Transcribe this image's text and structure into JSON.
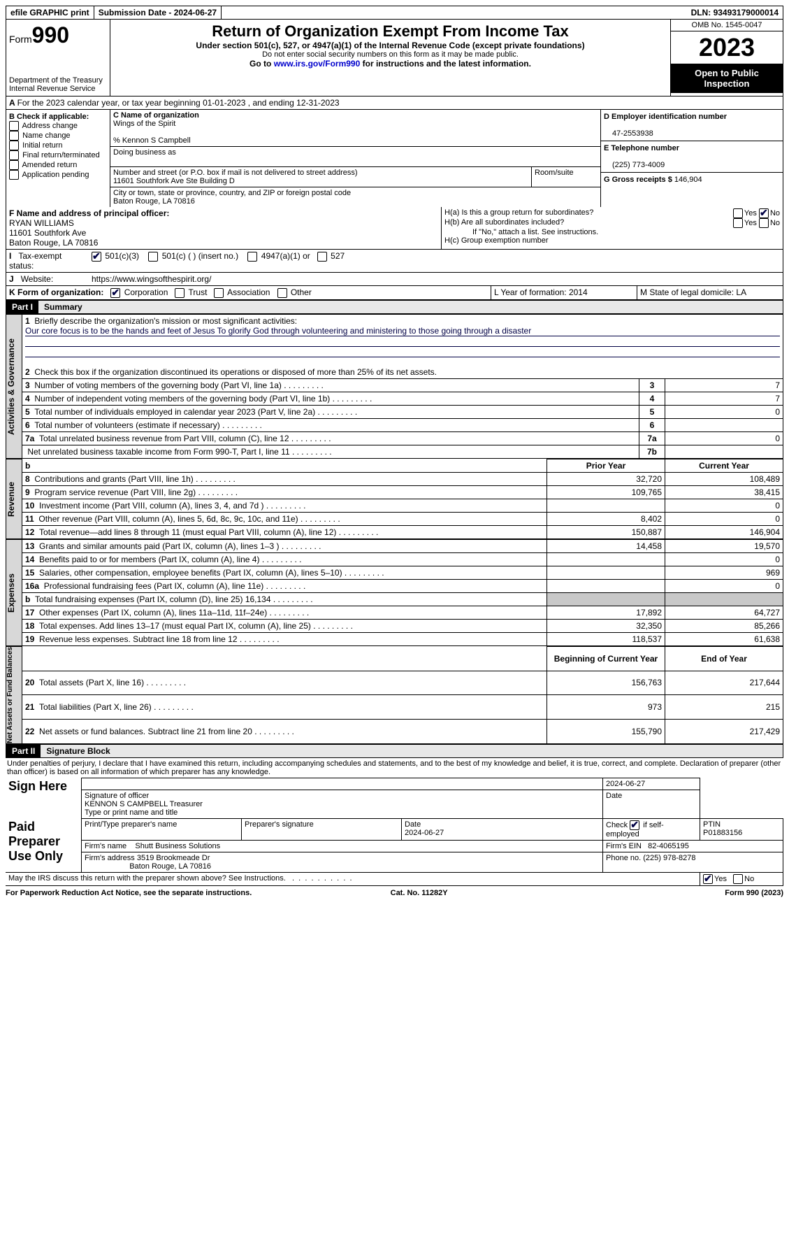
{
  "topbar": {
    "efile": "efile GRAPHIC print",
    "sub_label": "Submission Date - ",
    "sub_date": "2024-06-27",
    "dln_label": "DLN: ",
    "dln": "93493179000014"
  },
  "header": {
    "form_label": "Form",
    "form_no": "990",
    "dept1": "Department of the Treasury",
    "dept2": "Internal Revenue Service",
    "title": "Return of Organization Exempt From Income Tax",
    "sub1": "Under section 501(c), 527, or 4947(a)(1) of the Internal Revenue Code (except private foundations)",
    "sub2": "Do not enter social security numbers on this form as it may be made public.",
    "sub3a": "Go to ",
    "sub3b": "www.irs.gov/Form990",
    "sub3c": " for instructions and the latest information.",
    "omb": "OMB No. 1545-0047",
    "year": "2023",
    "open": "Open to Public Inspection"
  },
  "lineA": "For the 2023 calendar year, or tax year beginning 01-01-2023   , and ending 12-31-2023",
  "boxB": {
    "hdr": "B Check if applicable:",
    "opts": [
      "Address change",
      "Name change",
      "Initial return",
      "Final return/terminated",
      "Amended return",
      "Application pending"
    ]
  },
  "boxC": {
    "name_lbl": "C Name of organization",
    "name": "Wings of the Spirit",
    "care": "% Kennon S Campbell",
    "dba_lbl": "Doing business as",
    "addr_lbl": "Number and street (or P.O. box if mail is not delivered to street address)",
    "addr": "11601 Southfork Ave Ste Building D",
    "room_lbl": "Room/suite",
    "city_lbl": "City or town, state or province, country, and ZIP or foreign postal code",
    "city": "Baton Rouge, LA   70816"
  },
  "boxD": {
    "lbl": "D Employer identification number",
    "val": "47-2553938"
  },
  "boxE": {
    "lbl": "E Telephone number",
    "val": "(225) 773-4009"
  },
  "boxG": {
    "lbl": "G Gross receipts $ ",
    "val": "146,904"
  },
  "boxF": {
    "lbl": "F  Name and address of principal officer:",
    "l1": "RYAN WILLIAMS",
    "l2": "11601 Southfork Ave",
    "l3": "Baton Rouge, LA   70816"
  },
  "boxH": {
    "a": "H(a)  Is this a group return for subordinates?",
    "b": "H(b)  Are all subordinates included?",
    "note": "If \"No,\" attach a list. See instructions.",
    "c": "H(c)  Group exemption number"
  },
  "rowI": {
    "lbl": "Tax-exempt status:",
    "o1": "501(c)(3)",
    "o2": "501(c) (  ) (insert no.)",
    "o3": "4947(a)(1) or",
    "o4": "527"
  },
  "rowJ": {
    "lbl": "Website:",
    "val": "https://www.wingsofthespirit.org/"
  },
  "rowK": {
    "lbl": "K Form of organization:",
    "opts": [
      "Corporation",
      "Trust",
      "Association",
      "Other"
    ],
    "L": "L Year of formation: 2014",
    "M": "M State of legal domicile: LA"
  },
  "part1": {
    "tag": "Part I",
    "title": "Summary"
  },
  "summary": {
    "q1": "Briefly describe the organization's mission or most significant activities:",
    "mission": "Our core focus is to be the hands and feet of Jesus To glorify God through volunteering and ministering to those going through a disaster",
    "q2": "Check this box      if the organization discontinued its operations or disposed of more than 25% of its net assets.",
    "rows_gov": [
      {
        "n": "3",
        "t": "Number of voting members of the governing body (Part VI, line 1a)",
        "c": "3",
        "v": "7"
      },
      {
        "n": "4",
        "t": "Number of independent voting members of the governing body (Part VI, line 1b)",
        "c": "4",
        "v": "7"
      },
      {
        "n": "5",
        "t": "Total number of individuals employed in calendar year 2023 (Part V, line 2a)",
        "c": "5",
        "v": "0"
      },
      {
        "n": "6",
        "t": "Total number of volunteers (estimate if necessary)",
        "c": "6",
        "v": ""
      },
      {
        "n": "7a",
        "t": "Total unrelated business revenue from Part VIII, column (C), line 12",
        "c": "7a",
        "v": "0"
      },
      {
        "n": "",
        "t": "Net unrelated business taxable income from Form 990-T, Part I, line 11",
        "c": "7b",
        "v": ""
      }
    ],
    "col_prior": "Prior Year",
    "col_curr": "Current Year",
    "rows_rev": [
      {
        "n": "8",
        "t": "Contributions and grants (Part VIII, line 1h)",
        "p": "32,720",
        "c": "108,489"
      },
      {
        "n": "9",
        "t": "Program service revenue (Part VIII, line 2g)",
        "p": "109,765",
        "c": "38,415"
      },
      {
        "n": "10",
        "t": "Investment income (Part VIII, column (A), lines 3, 4, and 7d )",
        "p": "",
        "c": "0"
      },
      {
        "n": "11",
        "t": "Other revenue (Part VIII, column (A), lines 5, 6d, 8c, 9c, 10c, and 11e)",
        "p": "8,402",
        "c": "0"
      },
      {
        "n": "12",
        "t": "Total revenue—add lines 8 through 11 (must equal Part VIII, column (A), line 12)",
        "p": "150,887",
        "c": "146,904"
      }
    ],
    "rows_exp": [
      {
        "n": "13",
        "t": "Grants and similar amounts paid (Part IX, column (A), lines 1–3 )",
        "p": "14,458",
        "c": "19,570"
      },
      {
        "n": "14",
        "t": "Benefits paid to or for members (Part IX, column (A), line 4)",
        "p": "",
        "c": "0"
      },
      {
        "n": "15",
        "t": "Salaries, other compensation, employee benefits (Part IX, column (A), lines 5–10)",
        "p": "",
        "c": "969"
      },
      {
        "n": "16a",
        "t": "Professional fundraising fees (Part IX, column (A), line 11e)",
        "p": "",
        "c": "0"
      },
      {
        "n": "b",
        "t": "Total fundraising expenses (Part IX, column (D), line 25) 16,134",
        "p": "shade",
        "c": "shade"
      },
      {
        "n": "17",
        "t": "Other expenses (Part IX, column (A), lines 11a–11d, 11f–24e)",
        "p": "17,892",
        "c": "64,727"
      },
      {
        "n": "18",
        "t": "Total expenses. Add lines 13–17 (must equal Part IX, column (A), line 25)",
        "p": "32,350",
        "c": "85,266"
      },
      {
        "n": "19",
        "t": "Revenue less expenses. Subtract line 18 from line 12",
        "p": "118,537",
        "c": "61,638"
      }
    ],
    "col_beg": "Beginning of Current Year",
    "col_end": "End of Year",
    "rows_net": [
      {
        "n": "20",
        "t": "Total assets (Part X, line 16)",
        "p": "156,763",
        "c": "217,644"
      },
      {
        "n": "21",
        "t": "Total liabilities (Part X, line 26)",
        "p": "973",
        "c": "215"
      },
      {
        "n": "22",
        "t": "Net assets or fund balances. Subtract line 21 from line 20",
        "p": "155,790",
        "c": "217,429"
      }
    ],
    "vlabels": {
      "gov": "Activities & Governance",
      "rev": "Revenue",
      "exp": "Expenses",
      "net": "Net Assets or Fund Balances"
    }
  },
  "part2": {
    "tag": "Part II",
    "title": "Signature Block"
  },
  "sig": {
    "decl": "Under penalties of perjury, I declare that I have examined this return, including accompanying schedules and statements, and to the best of my knowledge and belief, it is true, correct, and complete. Declaration of preparer (other than officer) is based on all information of which preparer has any knowledge.",
    "sign_here": "Sign Here",
    "sig_off_lbl": "Signature of officer",
    "sig_date": "2024-06-27",
    "officer": "KENNON S CAMPBELL  Treasurer",
    "type_lbl": "Type or print name and title",
    "date_lbl": "Date",
    "paid": "Paid Preparer Use Only",
    "prep_name_lbl": "Print/Type preparer's name",
    "prep_sig_lbl": "Preparer's signature",
    "prep_date": "2024-06-27",
    "self_emp": "Check        if self-employed",
    "ptin_lbl": "PTIN",
    "ptin": "P01883156",
    "firm_name_lbl": "Firm's name",
    "firm_name": "Shutt Business Solutions",
    "firm_ein_lbl": "Firm's EIN",
    "firm_ein": "82-4065195",
    "firm_addr_lbl": "Firm's address",
    "firm_addr1": "3519 Brookmeade Dr",
    "firm_addr2": "Baton Rouge, LA   70816",
    "phone_lbl": "Phone no.",
    "phone": "(225) 978-8278",
    "discuss": "May the IRS discuss this return with the preparer shown above? See Instructions."
  },
  "footer": {
    "l": "For Paperwork Reduction Act Notice, see the separate instructions.",
    "m": "Cat. No. 11282Y",
    "r": "Form 990 (2023)"
  },
  "yn": {
    "yes": "Yes",
    "no": "No"
  }
}
